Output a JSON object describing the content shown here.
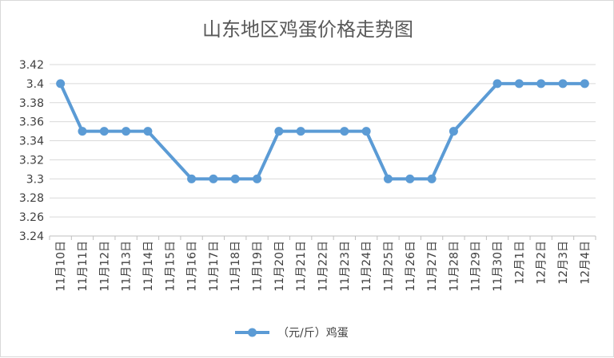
{
  "chart_data": {
    "type": "line",
    "title": "山东地区鸡蛋价格走势图",
    "xlabel": "",
    "ylabel": "",
    "categories": [
      "11月10日",
      "11月11日",
      "11月12日",
      "11月13日",
      "11月14日",
      "11月15日",
      "11月16日",
      "11月17日",
      "11月18日",
      "11月19日",
      "11月20日",
      "11月21日",
      "11月22日",
      "11月23日",
      "11月24日",
      "11月25日",
      "11月26日",
      "11月27日",
      "11月28日",
      "11月29日",
      "11月30日",
      "12月1日",
      "12月2日",
      "12月3日",
      "12月4日"
    ],
    "series": [
      {
        "name": "（元/斤）鸡蛋",
        "color": "#5b9bd5",
        "values": [
          3.4,
          3.35,
          3.35,
          3.35,
          3.35,
          null,
          3.3,
          3.3,
          3.3,
          3.3,
          3.35,
          3.35,
          null,
          3.35,
          3.35,
          3.3,
          3.3,
          3.3,
          3.35,
          null,
          3.4,
          3.4,
          3.4,
          3.4,
          3.4
        ]
      }
    ],
    "ylim": [
      3.24,
      3.42
    ],
    "yticks": [
      "3.24",
      "3.26",
      "3.28",
      "3.3",
      "3.32",
      "3.34",
      "3.36",
      "3.38",
      "3.4",
      "3.42"
    ],
    "ytick_values": [
      3.24,
      3.26,
      3.28,
      3.3,
      3.32,
      3.34,
      3.36,
      3.38,
      3.4,
      3.42
    ],
    "grid": true,
    "gap_handling": "connect",
    "legend_position": "bottom"
  }
}
